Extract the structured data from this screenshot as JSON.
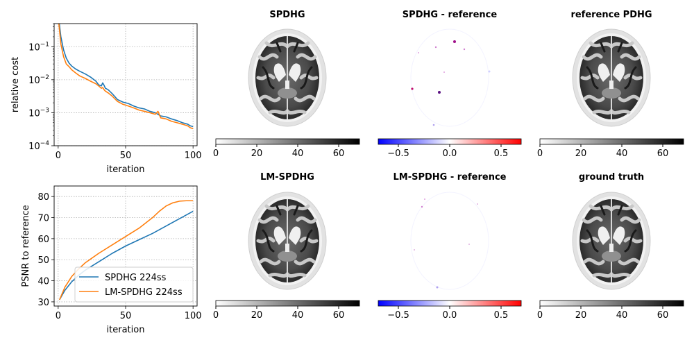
{
  "colors": {
    "spdhg": "#1f77b4",
    "lm_spdhg": "#ff7f0e",
    "grid": "#b0b0b0",
    "diff_neg": "#0000ff",
    "diff_pos": "#ff0000"
  },
  "chart_data": [
    {
      "type": "line",
      "title": "",
      "xlabel": "iteration",
      "ylabel": "relative cost",
      "yscale": "log",
      "xlim": [
        -3,
        103
      ],
      "ylim": [
        0.0001,
        0.5
      ],
      "xticks": [
        "0",
        "50",
        "100"
      ],
      "yticks": [
        "10^-4",
        "10^-3",
        "10^-2",
        "10^-1"
      ],
      "grid": true,
      "series": [
        {
          "name": "SPDHG 224ss",
          "x": [
            0,
            2,
            4,
            6,
            8,
            10,
            13,
            16,
            20,
            24,
            28,
            30,
            32,
            33,
            34,
            35,
            37,
            40,
            44,
            48,
            52,
            56,
            60,
            64,
            68,
            72,
            76,
            80,
            84,
            88,
            92,
            96,
            98,
            100
          ],
          "y": [
            1.0,
            0.2,
            0.08,
            0.045,
            0.032,
            0.026,
            0.021,
            0.018,
            0.015,
            0.012,
            0.009,
            0.007,
            0.0065,
            0.008,
            0.0068,
            0.0055,
            0.005,
            0.0038,
            0.0025,
            0.0021,
            0.0019,
            0.0016,
            0.0014,
            0.0013,
            0.0011,
            0.001,
            0.0008,
            0.00075,
            0.00065,
            0.00058,
            0.0005,
            0.00045,
            0.0004,
            0.00038
          ]
        },
        {
          "name": "LM-SPDHG 224ss",
          "x": [
            0,
            2,
            4,
            6,
            8,
            10,
            13,
            16,
            20,
            24,
            28,
            30,
            32,
            33,
            34,
            35,
            37,
            40,
            44,
            48,
            52,
            56,
            60,
            64,
            68,
            72,
            74,
            76,
            80,
            84,
            88,
            92,
            96,
            98,
            100
          ],
          "y": [
            0.8,
            0.12,
            0.05,
            0.03,
            0.025,
            0.02,
            0.016,
            0.013,
            0.011,
            0.009,
            0.0075,
            0.0065,
            0.0055,
            0.0058,
            0.005,
            0.0045,
            0.004,
            0.0032,
            0.0022,
            0.0018,
            0.0016,
            0.0014,
            0.0012,
            0.0011,
            0.001,
            0.0009,
            0.0011,
            0.0007,
            0.00065,
            0.00055,
            0.0005,
            0.00045,
            0.0004,
            0.00035,
            0.00033
          ]
        }
      ]
    },
    {
      "type": "line",
      "title": "",
      "xlabel": "iteration",
      "ylabel": "PSNR to reference",
      "xlim": [
        -3,
        103
      ],
      "ylim": [
        28,
        85
      ],
      "xticks": [
        "0",
        "50",
        "100"
      ],
      "yticks": [
        "30",
        "40",
        "50",
        "60",
        "70",
        "80"
      ],
      "grid": true,
      "legend": "lower-right",
      "series": [
        {
          "name": "SPDHG 224ss",
          "x": [
            1,
            5,
            10,
            15,
            20,
            30,
            40,
            50,
            60,
            70,
            80,
            90,
            100
          ],
          "y": [
            31,
            35.5,
            39.5,
            42.5,
            45,
            49,
            53,
            56.5,
            59.5,
            62.5,
            66,
            69.5,
            73
          ]
        },
        {
          "name": "LM-SPDHG 224ss",
          "x": [
            1,
            5,
            10,
            15,
            20,
            30,
            40,
            50,
            60,
            70,
            75,
            80,
            85,
            90,
            95,
            100
          ],
          "y": [
            31,
            37,
            42,
            45.5,
            48.5,
            53,
            57,
            61,
            65,
            70,
            73,
            75.5,
            77,
            77.8,
            78,
            78
          ]
        }
      ]
    }
  ],
  "panels": [
    {
      "title": "SPDHG",
      "type": "image",
      "cmap": "gray_r",
      "ticks": [
        "0",
        "20",
        "40",
        "60"
      ]
    },
    {
      "title": "SPDHG - reference",
      "type": "difference",
      "cmap": "bwr",
      "ticks": [
        "−0.5",
        "0.0",
        "0.5"
      ]
    },
    {
      "title": "reference PDHG",
      "type": "image",
      "cmap": "gray_r",
      "ticks": [
        "0",
        "20",
        "40",
        "60"
      ]
    },
    {
      "title": "LM-SPDHG",
      "type": "image",
      "cmap": "gray_r",
      "ticks": [
        "0",
        "20",
        "40",
        "60"
      ]
    },
    {
      "title": "LM-SPDHG - reference",
      "type": "difference",
      "cmap": "bwr",
      "ticks": [
        "−0.5",
        "0.0",
        "0.5"
      ]
    },
    {
      "title": "ground truth",
      "type": "image",
      "cmap": "gray_r",
      "ticks": [
        "0",
        "20",
        "40",
        "60"
      ]
    }
  ]
}
